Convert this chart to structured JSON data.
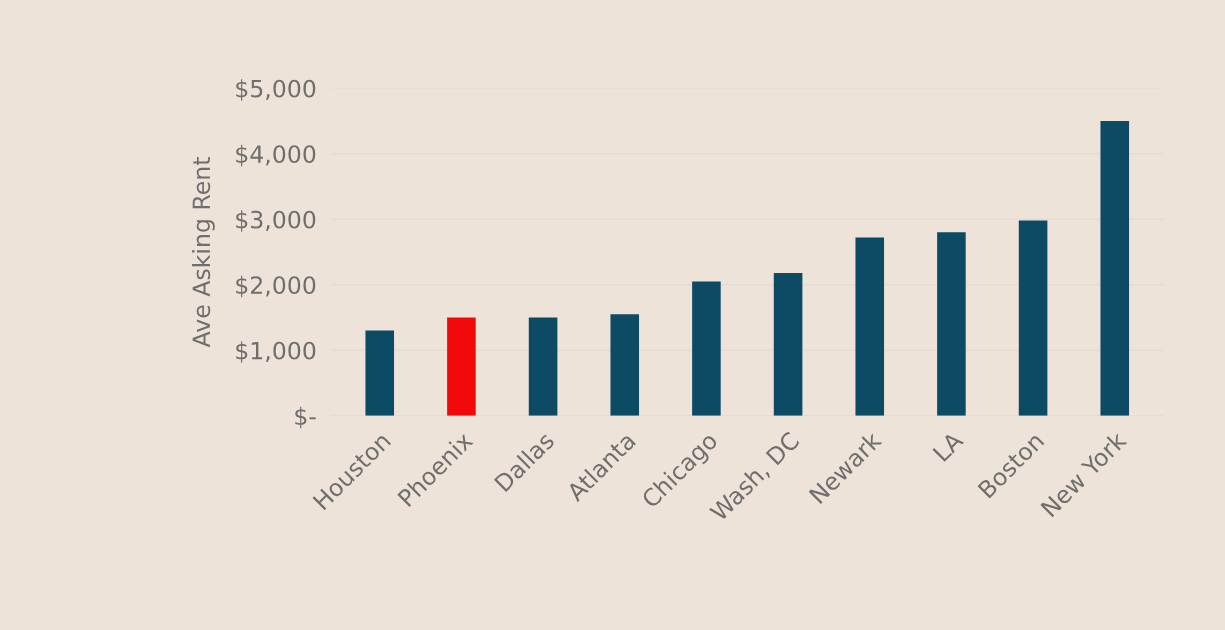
{
  "chart_data": {
    "type": "bar",
    "ylabel": "Ave Asking Rent",
    "categories": [
      "Houston",
      "Phoenix",
      "Dallas",
      "Atlanta",
      "Chicago",
      "Wash, DC",
      "Newark",
      "LA",
      "Boston",
      "New York"
    ],
    "values": [
      1300,
      1500,
      1500,
      1550,
      2050,
      2180,
      2720,
      2800,
      2980,
      4500
    ],
    "colors": [
      "#0d4a63",
      "#f20a0a",
      "#0d4a63",
      "#0d4a63",
      "#0d4a63",
      "#0d4a63",
      "#0d4a63",
      "#0d4a63",
      "#0d4a63",
      "#0d4a63"
    ],
    "ylim": [
      0,
      5000
    ],
    "yticks": [
      {
        "value": 0,
        "label": "$-"
      },
      {
        "value": 1000,
        "label": "$1,000"
      },
      {
        "value": 2000,
        "label": "$2,000"
      },
      {
        "value": 3000,
        "label": "$3,000"
      },
      {
        "value": 4000,
        "label": "$4,000"
      },
      {
        "value": 5000,
        "label": "$5,000"
      }
    ],
    "grid": "y",
    "legend": false
  }
}
